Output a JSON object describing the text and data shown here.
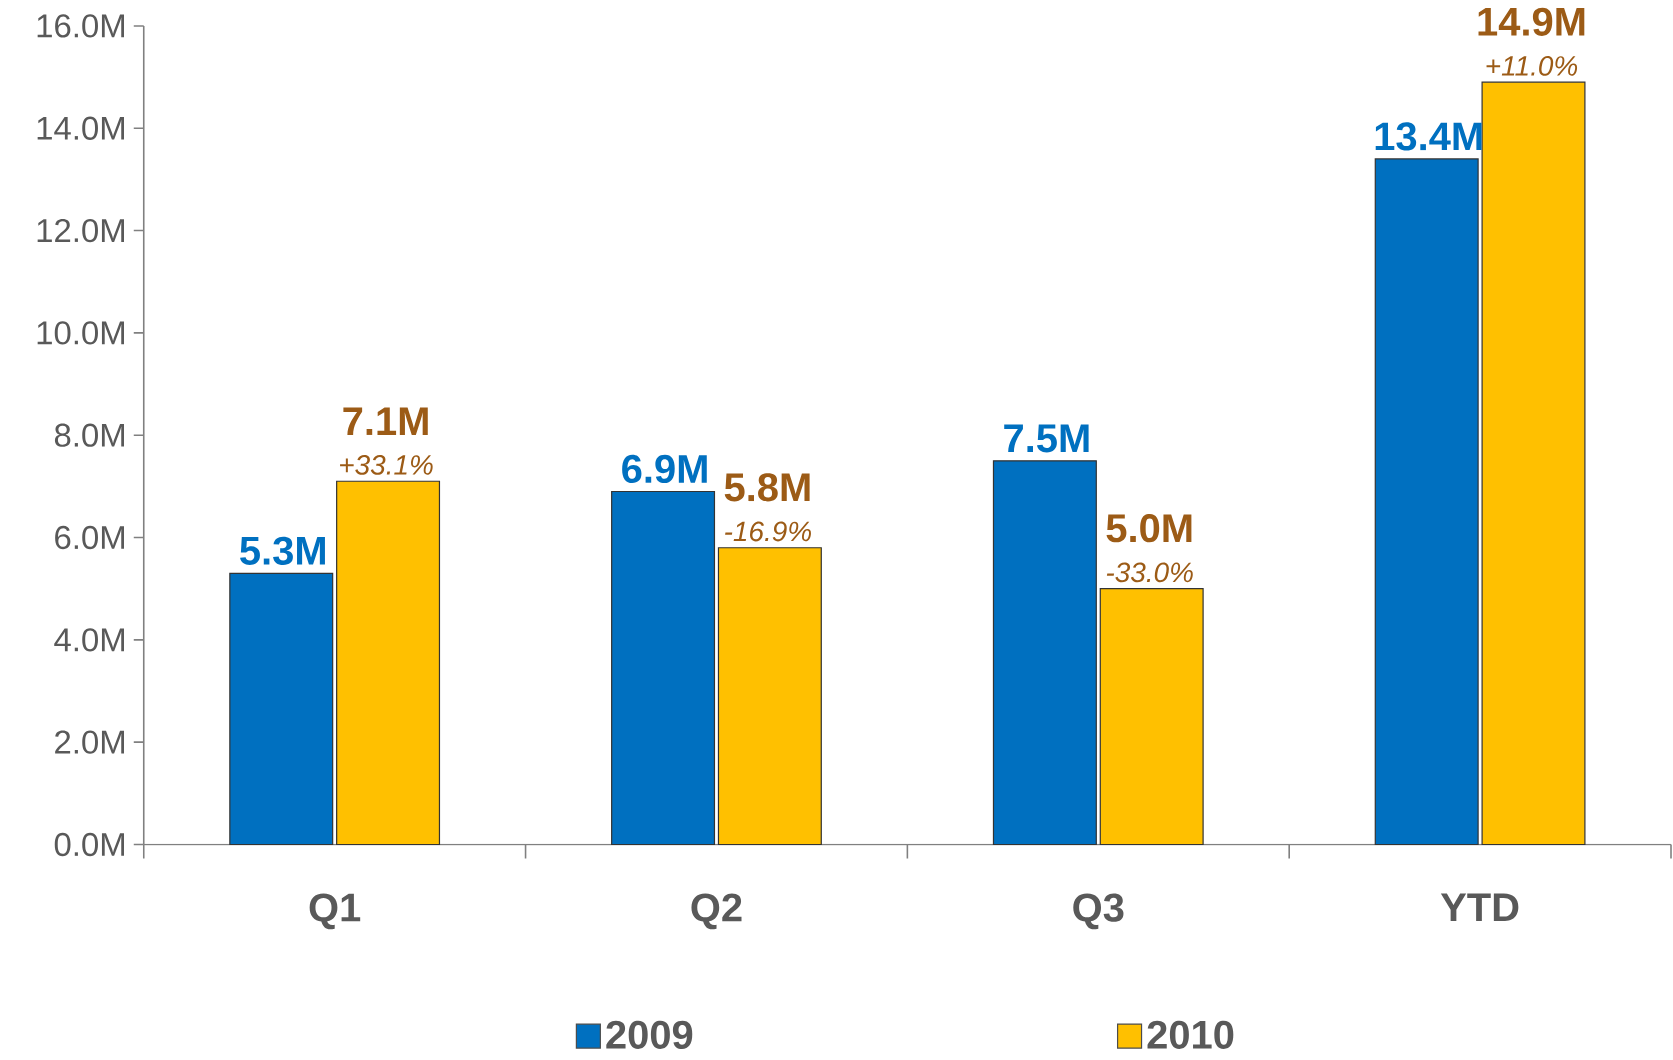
{
  "chart_data": {
    "type": "bar",
    "categories": [
      "Q1",
      "Q2",
      "Q3",
      "YTD"
    ],
    "series": [
      {
        "name": "2009",
        "color": "#0070c0",
        "values": [
          5.3,
          6.9,
          7.5,
          13.4
        ],
        "value_labels": [
          "5.3M",
          "6.9M",
          "7.5M",
          "13.4M"
        ]
      },
      {
        "name": "2010",
        "color": "#ffc000",
        "values": [
          7.1,
          5.8,
          5.0,
          14.9
        ],
        "value_labels": [
          "7.1M",
          "5.8M",
          "5.0M",
          "14.9M"
        ]
      }
    ],
    "ylim": [
      0,
      16
    ],
    "yticks": [
      {
        "value": 0,
        "label": "0.0M"
      },
      {
        "value": 2,
        "label": "2.0M"
      },
      {
        "value": 4,
        "label": "4.0M"
      },
      {
        "value": 6,
        "label": "6.0M"
      },
      {
        "value": 8,
        "label": "8.0M"
      },
      {
        "value": 10,
        "label": "10.0M"
      },
      {
        "value": 12,
        "label": "12.0M"
      },
      {
        "value": 14,
        "label": "14.0M"
      },
      {
        "value": 16,
        "label": "16.0M"
      }
    ],
    "annotations": [
      {
        "text": "+33.1%",
        "x": "Q1",
        "y": 7.1
      },
      {
        "text": "-16.9%",
        "x": "Q2",
        "y": 5.8
      },
      {
        "text": "-33.0%",
        "x": "Q3",
        "y": 5.0
      },
      {
        "text": "+11.0%",
        "x": "YTD",
        "y": 14.9
      }
    ],
    "grid": false,
    "legend": "bottom"
  }
}
